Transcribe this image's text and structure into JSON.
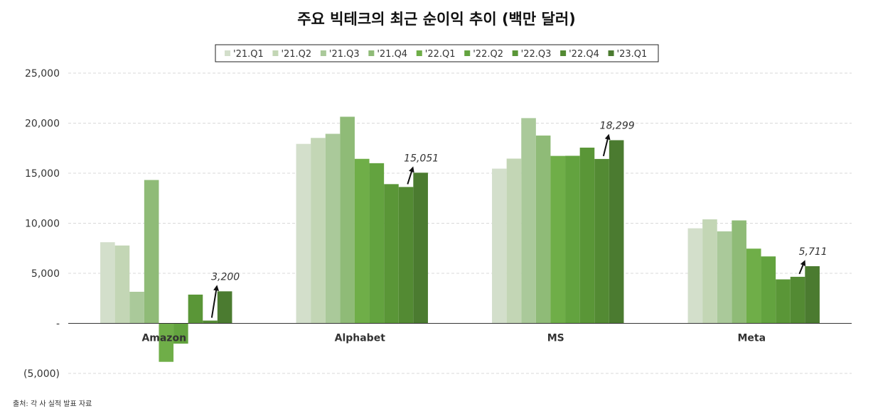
{
  "chart_data": {
    "type": "bar",
    "title": "주요 빅테크의 최근 순이익 추이 (백만 달러)",
    "categories": [
      "Amazon",
      "Alphabet",
      "MS",
      "Meta"
    ],
    "series": [
      {
        "name": "'21.Q1",
        "color": "#d3dfcb",
        "values": [
          8107,
          17930,
          15457,
          9497
        ]
      },
      {
        "name": "'21.Q2",
        "color": "#c3d6b5",
        "values": [
          7778,
          18525,
          16458,
          10394
        ]
      },
      {
        "name": "'21.Q3",
        "color": "#aac99a",
        "values": [
          3156,
          18936,
          20505,
          9194
        ]
      },
      {
        "name": "'21.Q4",
        "color": "#8fbb77",
        "values": [
          14323,
          20642,
          18765,
          10285
        ]
      },
      {
        "name": "'22.Q1",
        "color": "#6fae48",
        "values": [
          -3844,
          16436,
          16728,
          7465
        ]
      },
      {
        "name": "'22.Q2",
        "color": "#63a33f",
        "values": [
          -2028,
          16002,
          16740,
          6687
        ]
      },
      {
        "name": "'22.Q3",
        "color": "#5a9637",
        "values": [
          2872,
          13910,
          17556,
          4395
        ]
      },
      {
        "name": "'22.Q4",
        "color": "#538a33",
        "values": [
          278,
          13624,
          16425,
          4652
        ]
      },
      {
        "name": "'23.Q1",
        "color": "#4b7b30",
        "values": [
          3200,
          15051,
          18299,
          5711
        ]
      }
    ],
    "y_tick_labels": [
      "(5,000)",
      "-",
      "5,000",
      "10,000",
      "15,000",
      "20,000",
      "25,000"
    ],
    "y_tick_values": [
      -5000,
      0,
      5000,
      10000,
      15000,
      20000,
      25000
    ],
    "ylim": [
      -5000,
      25000
    ],
    "grid": true,
    "legend_position": "top-center",
    "annotations": [
      {
        "category": "Amazon",
        "from_value": 278,
        "to_value": 3200,
        "label": "3,200"
      },
      {
        "category": "Alphabet",
        "from_value": 13624,
        "to_value": 15051,
        "label": "15,051"
      },
      {
        "category": "MS",
        "from_value": 16425,
        "to_value": 18299,
        "label": "18,299"
      },
      {
        "category": "Meta",
        "from_value": 4652,
        "to_value": 5711,
        "label": "5,711"
      }
    ],
    "source": "출처: 각 사 실적 발표 자료"
  }
}
